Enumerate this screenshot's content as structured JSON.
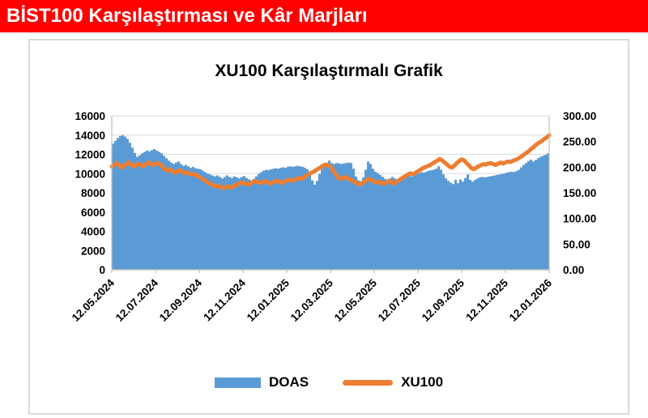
{
  "header": {
    "title": "BİST100 Karşılaştırması ve Kâr Marjları",
    "background_color": "#FE0000",
    "text_color": "#FFFFFF"
  },
  "chart_data": {
    "type": "combo (area + line)",
    "title": "XU100 Karşılaştırmalı  Grafik",
    "grid": true,
    "legend_position": "bottom",
    "x_ticks": [
      "12.05.2024",
      "12.07.2024",
      "12.09.2024",
      "12.11.2024",
      "12.01.2025",
      "12.03.2025",
      "12.05.2025",
      "12.07.2025",
      "12.09.2025",
      "12.11.2025",
      "12.01.2026"
    ],
    "left_axis": {
      "min": 0,
      "max": 16000,
      "step": 2000,
      "tick_labels": [
        "16000",
        "14000",
        "12000",
        "10000",
        "8000",
        "6000",
        "4000",
        "2000",
        "0"
      ]
    },
    "right_axis": {
      "min": 0,
      "max": 300,
      "step": 50,
      "tick_labels": [
        "300.00",
        "250.00",
        "200.00",
        "150.00",
        "100.00",
        "50.00",
        "0.00"
      ]
    },
    "colors": {
      "grid": "#D9D9D9",
      "axis_line": "#BFBFBF",
      "axis_text": "#000000",
      "plot_border": "#D9D9D9"
    },
    "series": [
      {
        "name": "DOAS",
        "type": "area",
        "axis": "left",
        "color": "#5B9BD5",
        "values": [
          13100,
          13400,
          13700,
          13900,
          14000,
          13850,
          13600,
          13200,
          12700,
          12150,
          11750,
          11900,
          12100,
          12250,
          12400,
          12300,
          12450,
          12550,
          12400,
          12250,
          12100,
          11850,
          11600,
          11350,
          11150,
          11000,
          11150,
          11250,
          11000,
          10800,
          10900,
          10750,
          10600,
          10700,
          10550,
          10500,
          10450,
          10300,
          10150,
          10000,
          9900,
          9800,
          9700,
          9800,
          9650,
          9500,
          9650,
          9800,
          9650,
          9550,
          9700,
          9600,
          9500,
          9650,
          9750,
          9550,
          9400,
          9300,
          9450,
          9700,
          9950,
          10150,
          10300,
          10400,
          10350,
          10450,
          10500,
          10550,
          10500,
          10600,
          10650,
          10600,
          10700,
          10750,
          10700,
          10750,
          10800,
          10750,
          10700,
          10600,
          10450,
          10000,
          9300,
          8850,
          9250,
          9950,
          10500,
          10800,
          11050,
          11350,
          11100,
          11000,
          11100,
          11050,
          11000,
          11050,
          11100,
          11150,
          11100,
          10500,
          9700,
          9300,
          9200,
          9600,
          10400,
          11250,
          11000,
          10500,
          10200,
          10050,
          9850,
          9650,
          9450,
          9350,
          9500,
          9650,
          9500,
          9400,
          9350,
          9450,
          9550,
          9650,
          9750,
          9700,
          9800,
          9950,
          10050,
          10150,
          10100,
          10200,
          10300,
          10350,
          10400,
          10500,
          10750,
          10400,
          9900,
          9500,
          9250,
          9050,
          8900,
          9350,
          9000,
          9400,
          9150,
          9550,
          9900,
          9350,
          9150,
          9350,
          9500,
          9600,
          9650,
          9600,
          9650,
          9700,
          9750,
          9800,
          9850,
          9900,
          9950,
          10000,
          10100,
          10150,
          10200,
          10150,
          10250,
          10400,
          10650,
          10900,
          11100,
          11300,
          11450,
          11250,
          11400,
          11600,
          11750,
          11850,
          11950,
          12100,
          12250
        ]
      },
      {
        "name": "XU100",
        "type": "line",
        "axis": "right",
        "color": "#ED7D31",
        "values": [
          201,
          204,
          208,
          204,
          199,
          203,
          206,
          209,
          205,
          201,
          204,
          207,
          204,
          202,
          205,
          209,
          207,
          204,
          207,
          208,
          205,
          200,
          196,
          193,
          196,
          192,
          189,
          192,
          194,
          191,
          188,
          190,
          187,
          185,
          187,
          184,
          181,
          178,
          175,
          172,
          169,
          166,
          164,
          162,
          164,
          161,
          159,
          161,
          163,
          160,
          162,
          165,
          167,
          169,
          171,
          168,
          166,
          168,
          170,
          173,
          171,
          169,
          171,
          173,
          170,
          168,
          170,
          172,
          174,
          171,
          169,
          172,
          174,
          176,
          173,
          175,
          177,
          179,
          177,
          180,
          183,
          186,
          189,
          191,
          194,
          197,
          200,
          203,
          205,
          204,
          201,
          194,
          187,
          181,
          177,
          179,
          181,
          178,
          176,
          174,
          171,
          168,
          166,
          169,
          172,
          175,
          177,
          174,
          172,
          170,
          172,
          169,
          167,
          170,
          173,
          171,
          168,
          171,
          174,
          177,
          180,
          183,
          186,
          188,
          186,
          189,
          192,
          195,
          198,
          200,
          202,
          204,
          207,
          210,
          213,
          216,
          213,
          209,
          205,
          201,
          199,
          203,
          208,
          212,
          215,
          213,
          208,
          203,
          198,
          196,
          199,
          202,
          204,
          206,
          205,
          207,
          208,
          206,
          204,
          207,
          209,
          207,
          209,
          211,
          210,
          212,
          214,
          216,
          219,
          222,
          226,
          229,
          233,
          237,
          241,
          245,
          248,
          251,
          255,
          258,
          262
        ]
      }
    ]
  },
  "legend": {
    "items": [
      {
        "label": "DOAS",
        "color": "#5B9BD5",
        "swatch": "rect"
      },
      {
        "label": "XU100",
        "color": "#ED7D31",
        "swatch": "line"
      }
    ]
  }
}
